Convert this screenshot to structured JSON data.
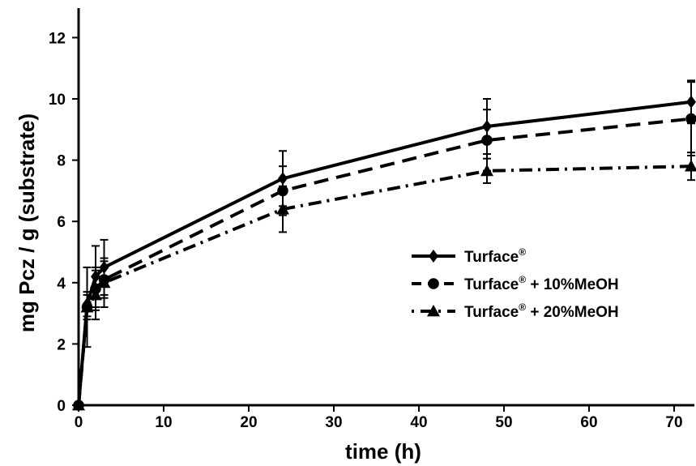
{
  "chart_data": {
    "type": "line",
    "title": "",
    "xlabel": "time (h)",
    "ylabel": "mg Pcz / g (substrate)",
    "xlim": [
      0,
      75
    ],
    "ylim": [
      0,
      13
    ],
    "xticks": [
      0,
      10,
      20,
      30,
      40,
      50,
      60,
      70
    ],
    "yticks": [
      0,
      2,
      4,
      6,
      8,
      10,
      12
    ],
    "grid": false,
    "legend_position": "center-right",
    "series": [
      {
        "name": "Turface®",
        "legend_text": "Turface",
        "legend_suffix": "",
        "marker": "diamond",
        "line_style": "solid",
        "x": [
          0,
          1,
          2,
          3,
          24,
          48,
          72
        ],
        "y": [
          0,
          3.3,
          4.2,
          4.5,
          7.4,
          9.1,
          9.9
        ],
        "err": [
          0,
          0.4,
          1.0,
          0.9,
          0.9,
          0.9,
          0.7
        ]
      },
      {
        "name": "Turface® + 10%MeOH",
        "legend_text": "Turface",
        "legend_suffix": " + 10%MeOH",
        "marker": "circle",
        "line_style": "dashed",
        "x": [
          0,
          1,
          2,
          3,
          24,
          48,
          72
        ],
        "y": [
          0,
          3.2,
          3.8,
          4.1,
          7.0,
          8.65,
          9.35
        ],
        "err": [
          0,
          0.4,
          0.7,
          0.6,
          0.8,
          1.0,
          1.2
        ]
      },
      {
        "name": "Turface® + 20%MeOH",
        "legend_text": "Turface",
        "legend_suffix": " + 20%MeOH",
        "marker": "triangle",
        "line_style": "dashdot",
        "x": [
          0,
          1,
          2,
          3,
          24,
          48,
          72
        ],
        "y": [
          0,
          3.2,
          3.6,
          4.0,
          6.4,
          7.65,
          7.8
        ],
        "err": [
          0,
          1.3,
          0.8,
          0.8,
          0.75,
          0.4,
          0.45
        ]
      }
    ],
    "colors": {
      "line": "#000000",
      "background": "#ffffff"
    }
  },
  "legend": {
    "registered_mark": "®"
  }
}
